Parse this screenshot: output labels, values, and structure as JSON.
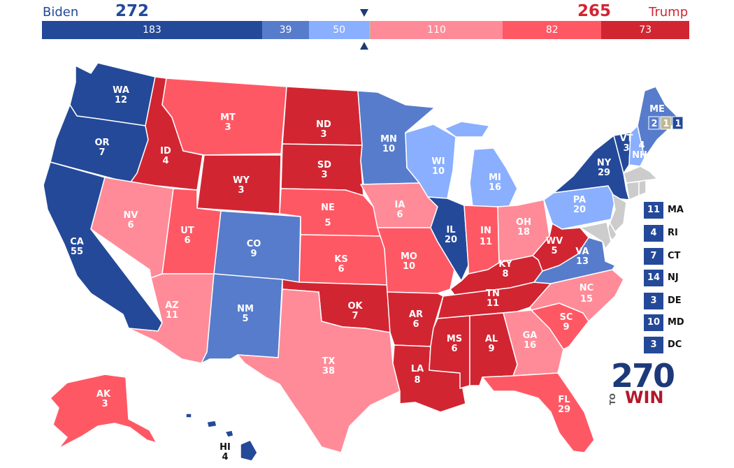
{
  "header": {
    "left_name": "Biden",
    "left_total": "272",
    "right_name": "Trump",
    "right_total": "265"
  },
  "colors": {
    "safe_d": "#244999",
    "likely_d": "#577ccc",
    "lean_d": "#8aafff",
    "tossup": "#bfb891",
    "lean_r": "#ff8b98",
    "likely_r": "#ff5865",
    "safe_r": "#d22532",
    "name_blue": "#244999",
    "name_red": "#d22532"
  },
  "bar": [
    {
      "label": "183",
      "value": 183,
      "color": "#244999"
    },
    {
      "label": "39",
      "value": 39,
      "color": "#577ccc"
    },
    {
      "label": "50",
      "value": 50,
      "color": "#8aafff"
    },
    {
      "label": "1",
      "value": 1,
      "color": "#bfb891"
    },
    {
      "label": "110",
      "value": 110,
      "color": "#ff8b98"
    },
    {
      "label": "82",
      "value": 82,
      "color": "#ff5865"
    },
    {
      "label": "73",
      "value": 73,
      "color": "#d22532"
    }
  ],
  "states": [
    {
      "abbr": "WA",
      "ev": "12",
      "rating": "safe_d"
    },
    {
      "abbr": "OR",
      "ev": "7",
      "rating": "safe_d"
    },
    {
      "abbr": "CA",
      "ev": "55",
      "rating": "safe_d"
    },
    {
      "abbr": "ID",
      "ev": "4",
      "rating": "safe_r"
    },
    {
      "abbr": "NV",
      "ev": "6",
      "rating": "lean_r"
    },
    {
      "abbr": "MT",
      "ev": "3",
      "rating": "likely_r"
    },
    {
      "abbr": "WY",
      "ev": "3",
      "rating": "safe_r"
    },
    {
      "abbr": "UT",
      "ev": "6",
      "rating": "likely_r"
    },
    {
      "abbr": "AZ",
      "ev": "11",
      "rating": "lean_r"
    },
    {
      "abbr": "CO",
      "ev": "9",
      "rating": "likely_d"
    },
    {
      "abbr": "NM",
      "ev": "5",
      "rating": "likely_d"
    },
    {
      "abbr": "ND",
      "ev": "3",
      "rating": "safe_r"
    },
    {
      "abbr": "SD",
      "ev": "3",
      "rating": "safe_r"
    },
    {
      "abbr": "NE",
      "ev": "5",
      "rating": "likely_r"
    },
    {
      "abbr": "KS",
      "ev": "6",
      "rating": "likely_r"
    },
    {
      "abbr": "OK",
      "ev": "7",
      "rating": "safe_r"
    },
    {
      "abbr": "TX",
      "ev": "38",
      "rating": "lean_r"
    },
    {
      "abbr": "MN",
      "ev": "10",
      "rating": "likely_d"
    },
    {
      "abbr": "IA",
      "ev": "6",
      "rating": "lean_r"
    },
    {
      "abbr": "MO",
      "ev": "10",
      "rating": "likely_r"
    },
    {
      "abbr": "AR",
      "ev": "6",
      "rating": "safe_r"
    },
    {
      "abbr": "LA",
      "ev": "8",
      "rating": "safe_r"
    },
    {
      "abbr": "WI",
      "ev": "10",
      "rating": "lean_d"
    },
    {
      "abbr": "IL",
      "ev": "20",
      "rating": "safe_d"
    },
    {
      "abbr": "MI",
      "ev": "16",
      "rating": "lean_d"
    },
    {
      "abbr": "IN",
      "ev": "11",
      "rating": "likely_r"
    },
    {
      "abbr": "OH",
      "ev": "18",
      "rating": "lean_r"
    },
    {
      "abbr": "KY",
      "ev": "8",
      "rating": "safe_r"
    },
    {
      "abbr": "TN",
      "ev": "11",
      "rating": "safe_r"
    },
    {
      "abbr": "MS",
      "ev": "6",
      "rating": "safe_r"
    },
    {
      "abbr": "AL",
      "ev": "9",
      "rating": "safe_r"
    },
    {
      "abbr": "GA",
      "ev": "16",
      "rating": "lean_r"
    },
    {
      "abbr": "FL",
      "ev": "29",
      "rating": "likely_r"
    },
    {
      "abbr": "SC",
      "ev": "9",
      "rating": "likely_r"
    },
    {
      "abbr": "NC",
      "ev": "15",
      "rating": "lean_r"
    },
    {
      "abbr": "VA",
      "ev": "13",
      "rating": "likely_d"
    },
    {
      "abbr": "WV",
      "ev": "5",
      "rating": "safe_r"
    },
    {
      "abbr": "PA",
      "ev": "20",
      "rating": "lean_d"
    },
    {
      "abbr": "NY",
      "ev": "29",
      "rating": "safe_d"
    },
    {
      "abbr": "VT",
      "ev": "3",
      "rating": "safe_d"
    },
    {
      "abbr": "NH",
      "ev": "4",
      "rating": "lean_d"
    },
    {
      "abbr": "ME",
      "ev": "",
      "rating": "likely_d"
    },
    {
      "abbr": "AK",
      "ev": "3",
      "rating": "likely_r"
    },
    {
      "abbr": "HI",
      "ev": "4",
      "rating": "safe_d"
    }
  ],
  "maine_districts": [
    {
      "label": "2",
      "rating": "likely_d"
    },
    {
      "label": "1",
      "rating": "tossup"
    },
    {
      "label": "1",
      "rating": "safe_d"
    }
  ],
  "northeast_boxes": [
    {
      "ev": "11",
      "abbr": "MA",
      "rating": "safe_d"
    },
    {
      "ev": "4",
      "abbr": "RI",
      "rating": "safe_d"
    },
    {
      "ev": "7",
      "abbr": "CT",
      "rating": "safe_d"
    },
    {
      "ev": "14",
      "abbr": "NJ",
      "rating": "safe_d"
    },
    {
      "ev": "3",
      "abbr": "DE",
      "rating": "safe_d"
    },
    {
      "ev": "10",
      "abbr": "MD",
      "rating": "safe_d"
    },
    {
      "ev": "3",
      "abbr": "DC",
      "rating": "safe_d"
    }
  ],
  "logo": {
    "number": "270",
    "to": "TO",
    "win": "WIN"
  }
}
